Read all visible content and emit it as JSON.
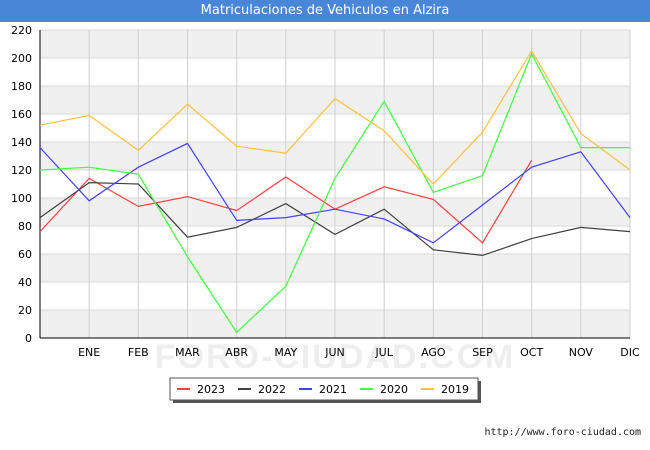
{
  "chart_data": {
    "type": "line",
    "title": "Matriculaciones de Vehiculos en Alzira",
    "categories": [
      "",
      "ENE",
      "FEB",
      "MAR",
      "ABR",
      "MAY",
      "JUN",
      "JUL",
      "AGO",
      "SEP",
      "OCT",
      "NOV",
      "DIC"
    ],
    "ylim": [
      0,
      220
    ],
    "yticks": [
      0,
      20,
      40,
      60,
      80,
      100,
      120,
      140,
      160,
      180,
      200,
      220
    ],
    "grid": true,
    "legend_position": "bottom",
    "series": [
      {
        "name": "2023",
        "color": "#ff4040",
        "values": [
          76,
          114,
          94,
          101,
          91,
          115,
          92,
          108,
          99,
          68,
          127,
          null,
          null
        ]
      },
      {
        "name": "2022",
        "color": "#404040",
        "values": [
          86,
          111,
          110,
          72,
          79,
          96,
          74,
          92,
          63,
          59,
          71,
          79,
          76
        ]
      },
      {
        "name": "2021",
        "color": "#4040ff",
        "values": [
          136,
          98,
          122,
          139,
          84,
          86,
          92,
          85,
          68,
          95,
          122,
          133,
          86
        ]
      },
      {
        "name": "2020",
        "color": "#40ff40",
        "values": [
          120,
          122,
          117,
          58,
          4,
          37,
          114,
          169,
          104,
          116,
          203,
          136,
          136
        ]
      },
      {
        "name": "2019",
        "color": "#ffc040",
        "values": [
          152,
          159,
          134,
          167,
          137,
          132,
          171,
          148,
          110,
          147,
          205,
          146,
          120
        ]
      }
    ]
  },
  "watermark": "FORO-CIUDAD.COM",
  "footer_url": "http://www.foro-ciudad.com"
}
